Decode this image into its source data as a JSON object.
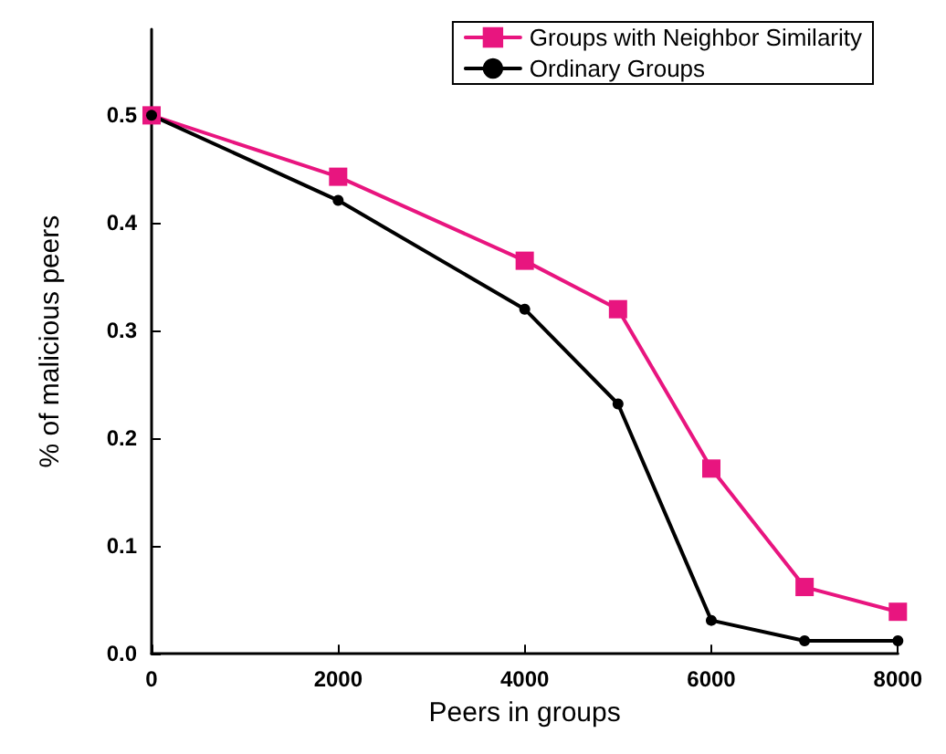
{
  "chart_data": {
    "type": "line",
    "xlabel": "Peers in groups",
    "ylabel": "% of malicious peers",
    "x": [
      0,
      2000,
      4000,
      5000,
      6000,
      7000,
      8000
    ],
    "series": [
      {
        "name": "Groups with Neighbor Similarity",
        "color": "#e8157f",
        "marker": "square",
        "values": [
          0.5,
          0.443,
          0.365,
          0.32,
          0.172,
          0.062,
          0.039
        ]
      },
      {
        "name": "Ordinary Groups",
        "color": "#000000",
        "marker": "circle",
        "values": [
          0.5,
          0.421,
          0.32,
          0.232,
          0.031,
          0.012,
          0.012
        ]
      }
    ],
    "xlim": [
      0,
      8000
    ],
    "xticks": [
      0,
      2000,
      4000,
      6000,
      8000
    ],
    "ylim": [
      0,
      0.58
    ],
    "yticks": [
      {
        "value": 0,
        "label": "0.0"
      },
      0.1,
      0.2,
      0.3,
      0.4,
      0.5
    ],
    "grid": false,
    "legend": "top right",
    "line_style": "solid"
  }
}
